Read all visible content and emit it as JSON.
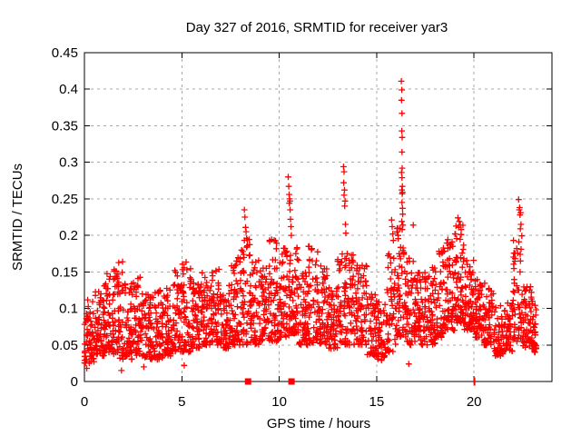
{
  "window": {
    "background": "#ffffff"
  },
  "chart_data": {
    "type": "scatter",
    "title": "Day 327 of 2016, SRMTID for receiver yar3",
    "xlabel": "GPS time / hours",
    "ylabel": "SRMTID / TECUs",
    "xlim": [
      0,
      24
    ],
    "ylim": [
      0,
      0.45
    ],
    "xticks": [
      0,
      5,
      10,
      15,
      20
    ],
    "yticks": [
      0,
      0.05,
      0.1,
      0.15,
      0.2,
      0.25,
      0.3,
      0.35,
      0.4,
      0.45
    ],
    "grid": true,
    "grid_style": "dashed",
    "grid_color": "#a8a8a8",
    "border_color": "#000000",
    "text_color": "#000000",
    "legend": "none",
    "seed": 327,
    "series": [
      {
        "name": "srmtid",
        "marker": "plus",
        "color": "#ff0000",
        "description": "Dense 30-second scatter of SRMTID values; band hugging 0.03-0.15 TECUs with transient spikes. Envelope bins give y-range and point count per 0.5 h.",
        "envelope_bins": {
          "bin_width_hours": 0.5,
          "x_end": 23.2,
          "columns": [
            "x_start",
            "y_min",
            "y_max",
            "count"
          ],
          "rows": [
            [
              0.0,
              0.025,
              0.115,
              55
            ],
            [
              0.5,
              0.035,
              0.125,
              60
            ],
            [
              1.0,
              0.04,
              0.15,
              60
            ],
            [
              1.5,
              0.03,
              0.165,
              60
            ],
            [
              2.0,
              0.03,
              0.14,
              55
            ],
            [
              2.5,
              0.035,
              0.145,
              55
            ],
            [
              3.0,
              0.03,
              0.12,
              55
            ],
            [
              3.5,
              0.03,
              0.125,
              55
            ],
            [
              4.0,
              0.035,
              0.13,
              55
            ],
            [
              4.5,
              0.04,
              0.16,
              55
            ],
            [
              5.0,
              0.04,
              0.165,
              55
            ],
            [
              5.5,
              0.045,
              0.145,
              55
            ],
            [
              6.0,
              0.05,
              0.15,
              55
            ],
            [
              6.5,
              0.05,
              0.155,
              55
            ],
            [
              7.0,
              0.045,
              0.135,
              55
            ],
            [
              7.5,
              0.05,
              0.17,
              55
            ],
            [
              8.0,
              0.05,
              0.195,
              50
            ],
            [
              8.5,
              0.05,
              0.175,
              50
            ],
            [
              9.0,
              0.055,
              0.16,
              55
            ],
            [
              9.5,
              0.055,
              0.195,
              55
            ],
            [
              10.0,
              0.06,
              0.185,
              55
            ],
            [
              10.5,
              0.065,
              0.19,
              65
            ],
            [
              11.0,
              0.05,
              0.15,
              60
            ],
            [
              11.5,
              0.05,
              0.185,
              55
            ],
            [
              12.0,
              0.05,
              0.16,
              55
            ],
            [
              12.5,
              0.045,
              0.13,
              55
            ],
            [
              13.0,
              0.05,
              0.175,
              55
            ],
            [
              13.5,
              0.05,
              0.19,
              55
            ],
            [
              14.0,
              0.05,
              0.165,
              55
            ],
            [
              14.5,
              0.035,
              0.12,
              50
            ],
            [
              15.0,
              0.03,
              0.11,
              45
            ],
            [
              15.5,
              0.04,
              0.175,
              50
            ],
            [
              16.0,
              0.06,
              0.21,
              60
            ],
            [
              16.5,
              0.05,
              0.17,
              55
            ],
            [
              17.0,
              0.05,
              0.15,
              55
            ],
            [
              17.5,
              0.05,
              0.16,
              55
            ],
            [
              18.0,
              0.06,
              0.19,
              55
            ],
            [
              18.5,
              0.07,
              0.2,
              60
            ],
            [
              19.0,
              0.08,
              0.215,
              65
            ],
            [
              19.5,
              0.07,
              0.17,
              60
            ],
            [
              20.0,
              0.06,
              0.14,
              55
            ],
            [
              20.5,
              0.05,
              0.135,
              55
            ],
            [
              21.0,
              0.035,
              0.105,
              55
            ],
            [
              21.5,
              0.04,
              0.11,
              50
            ],
            [
              22.0,
              0.055,
              0.2,
              55
            ],
            [
              22.5,
              0.045,
              0.13,
              55
            ],
            [
              23.0,
              0.04,
              0.105,
              25
            ]
          ]
        },
        "extra_points": [
          [
            8.21,
            0.235
          ],
          [
            8.24,
            0.225
          ],
          [
            8.27,
            0.211
          ],
          [
            8.3,
            0.205
          ],
          [
            8.33,
            0.196
          ],
          [
            8.49,
            0.173
          ],
          [
            8.62,
            0.163
          ],
          [
            10.46,
            0.28
          ],
          [
            10.49,
            0.267
          ],
          [
            10.51,
            0.256
          ],
          [
            10.53,
            0.25
          ],
          [
            10.55,
            0.247
          ],
          [
            10.52,
            0.244
          ],
          [
            10.56,
            0.235
          ],
          [
            10.58,
            0.222
          ],
          [
            10.6,
            0.212
          ],
          [
            10.62,
            0.2
          ],
          [
            13.3,
            0.294
          ],
          [
            13.33,
            0.287
          ],
          [
            13.31,
            0.272
          ],
          [
            13.35,
            0.262
          ],
          [
            13.33,
            0.255
          ],
          [
            13.38,
            0.247
          ],
          [
            13.36,
            0.24
          ],
          [
            13.4,
            0.215
          ],
          [
            13.42,
            0.203
          ],
          [
            15.77,
            0.221
          ],
          [
            15.8,
            0.212
          ],
          [
            15.83,
            0.202
          ],
          [
            15.86,
            0.193
          ],
          [
            16.27,
            0.411
          ],
          [
            16.29,
            0.399
          ],
          [
            16.28,
            0.385
          ],
          [
            16.3,
            0.367
          ],
          [
            16.29,
            0.343
          ],
          [
            16.31,
            0.334
          ],
          [
            16.3,
            0.314
          ],
          [
            16.31,
            0.292
          ],
          [
            16.28,
            0.286
          ],
          [
            16.3,
            0.279
          ],
          [
            16.32,
            0.267
          ],
          [
            16.29,
            0.262
          ],
          [
            16.33,
            0.259
          ],
          [
            16.31,
            0.257
          ],
          [
            16.3,
            0.245
          ],
          [
            16.33,
            0.237
          ],
          [
            16.34,
            0.229
          ],
          [
            16.29,
            0.219
          ],
          [
            16.35,
            0.214
          ],
          [
            16.31,
            0.208
          ],
          [
            16.88,
            0.214
          ],
          [
            19.17,
            0.224
          ],
          [
            19.24,
            0.219
          ],
          [
            19.3,
            0.214
          ],
          [
            19.21,
            0.211
          ],
          [
            19.34,
            0.208
          ],
          [
            22.29,
            0.249
          ],
          [
            22.34,
            0.238
          ],
          [
            22.32,
            0.235
          ],
          [
            22.39,
            0.231
          ],
          [
            22.36,
            0.228
          ],
          [
            22.41,
            0.215
          ],
          [
            22.38,
            0.209
          ],
          [
            15.25,
            0.029
          ],
          [
            16.65,
            0.024
          ],
          [
            0.12,
            0.018
          ],
          [
            1.9,
            0.015
          ],
          [
            5.12,
            0.022
          ],
          [
            3.05,
            0.02
          ],
          [
            23.12,
            0.04
          ]
        ]
      },
      {
        "name": "axis-event-squares",
        "marker": "filled-square",
        "color": "#ff0000",
        "points": [
          [
            8.4,
            0
          ],
          [
            10.63,
            0
          ]
        ]
      },
      {
        "name": "axis-zero-tick",
        "marker": "vertical-tick",
        "color": "#ff0000",
        "points": [
          [
            20.02,
            0
          ]
        ]
      }
    ]
  }
}
